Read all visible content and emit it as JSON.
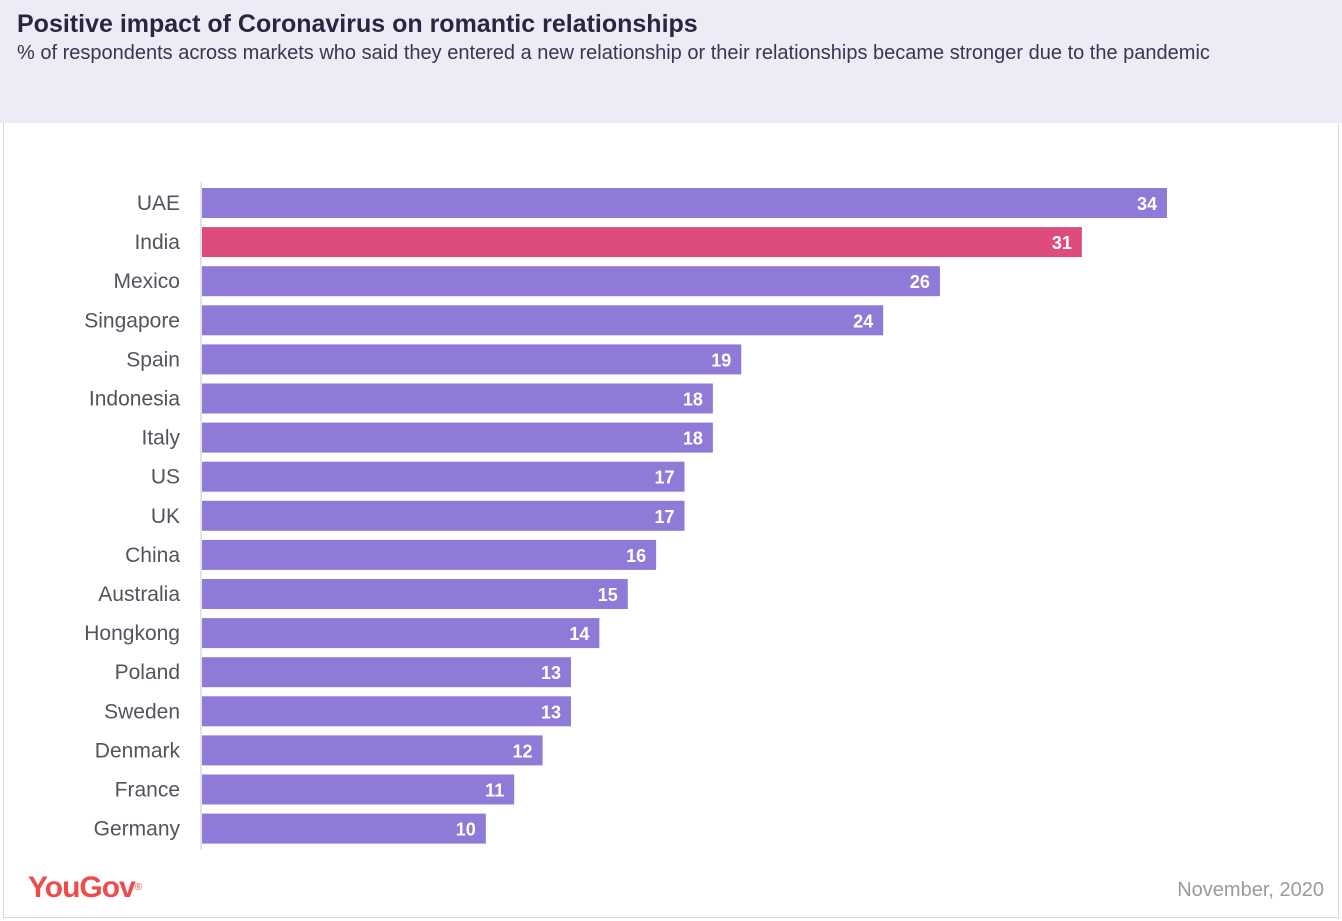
{
  "header": {
    "title": "Positive impact of Coronavirus on romantic relationships",
    "subtitle": "% of respondents across markets who said they entered a new relationship or their relationships became stronger due to the pandemic"
  },
  "footer": {
    "brand": "YouGov",
    "date": "November, 2020"
  },
  "colors": {
    "bar": "#8f7ad8",
    "highlight": "#de4c7e",
    "brand": "#ef4b4b",
    "axis": "#c8c8c8"
  },
  "chart_data": {
    "type": "bar",
    "orientation": "horizontal",
    "title": "Positive impact of Coronavirus on romantic relationships",
    "subtitle": "% of respondents across markets who said they entered a new relationship or their relationships became stronger due to the pandemic",
    "categories": [
      "UAE",
      "India",
      "Mexico",
      "Singapore",
      "Spain",
      "Indonesia",
      "Italy",
      "US",
      "UK",
      "China",
      "Australia",
      "Hongkong",
      "Poland",
      "Sweden",
      "Denmark",
      "France",
      "Germany"
    ],
    "values": [
      34,
      31,
      26,
      24,
      19,
      18,
      18,
      17,
      17,
      16,
      15,
      14,
      13,
      13,
      12,
      11,
      10
    ],
    "highlight_category": "India",
    "xlim": [
      0,
      34
    ],
    "grid": false,
    "legend": "none"
  }
}
